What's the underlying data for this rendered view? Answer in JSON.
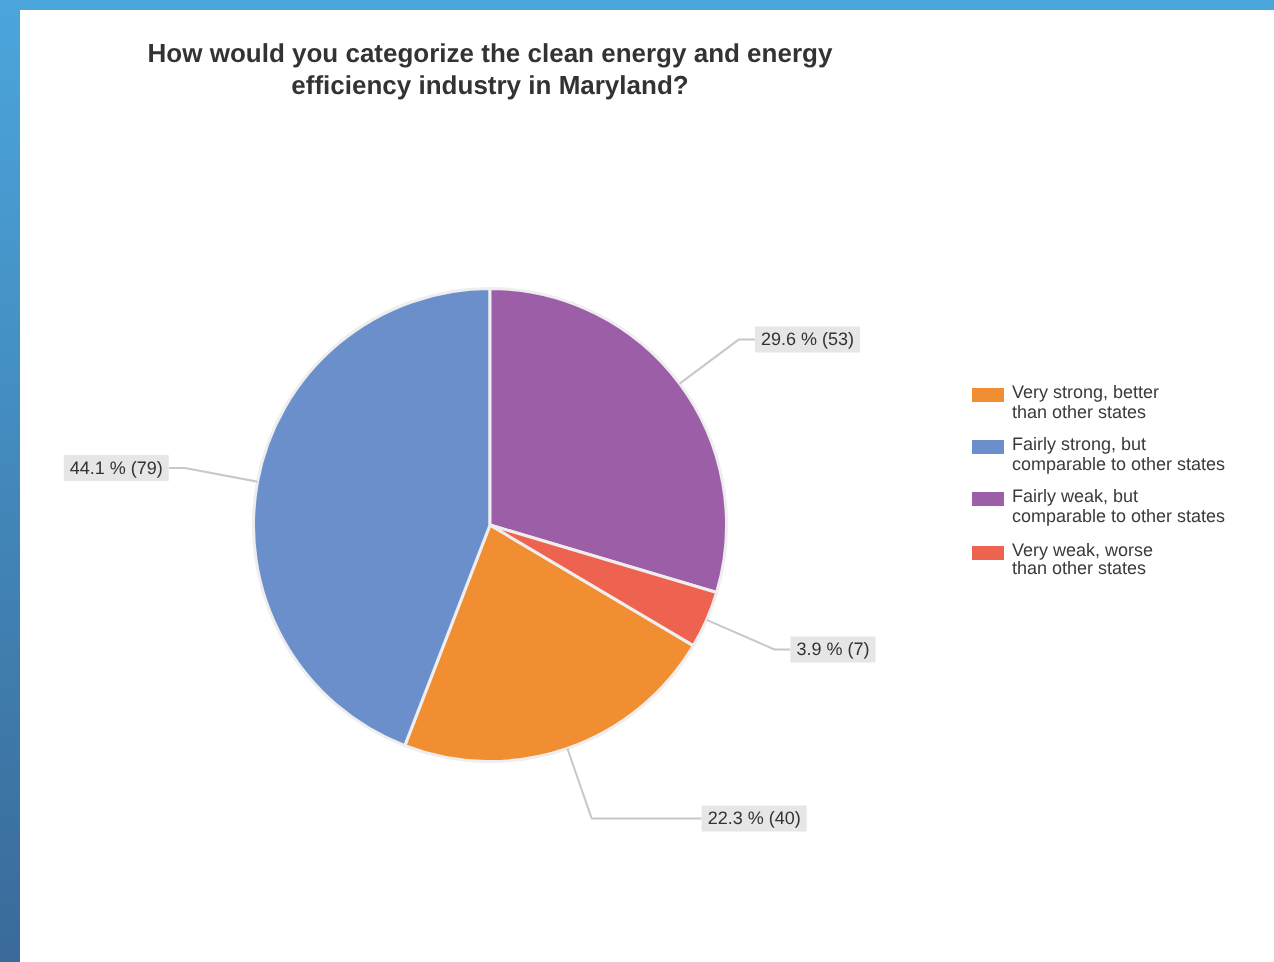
{
  "chart_data": {
    "type": "pie",
    "title": "How would you categorize the clean energy and energy efficiency industry in Maryland?",
    "categories": [
      "Very strong, better than other states",
      "Fairly strong, but comparable to other states",
      "Fairly weak, but comparable to other states",
      "Very weak, worse than other states"
    ],
    "values": [
      40,
      79,
      53,
      7
    ],
    "colors": [
      "#f28e32",
      "#6b8fca",
      "#9c5ea7",
      "#ee6350"
    ],
    "value_labels": [
      "22.3 % (40)",
      "44.1 % (79)",
      "29.6 % (53)",
      "3.9 % (7)"
    ],
    "legend": "right"
  }
}
